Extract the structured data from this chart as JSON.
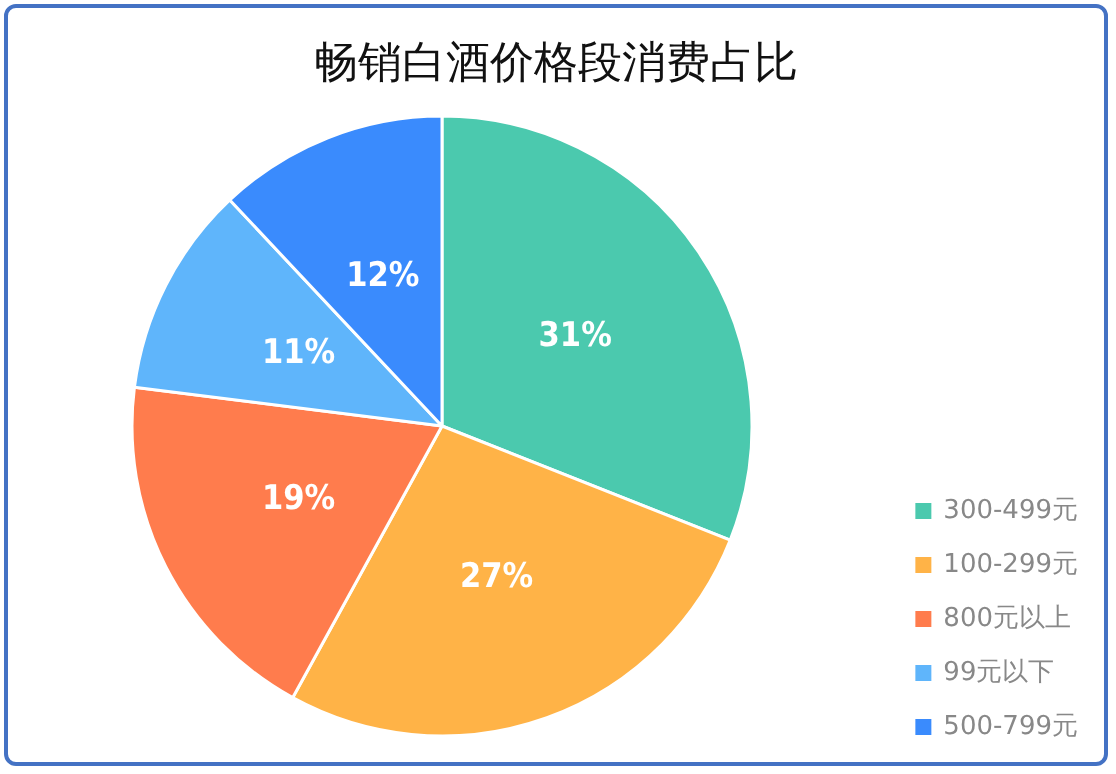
{
  "chart_data": {
    "type": "pie",
    "title": "畅销白酒价格段消费占比",
    "categories": [
      "300-499元",
      "100-299元",
      "800元以上",
      "99元以下",
      "500-799元"
    ],
    "values": [
      31,
      27,
      19,
      11,
      12
    ],
    "colors": [
      "#4bc9ae",
      "#ffb347",
      "#ff7c4d",
      "#5fb5fb",
      "#3a8bfd"
    ],
    "value_labels": [
      "31%",
      "27%",
      "19%",
      "11%",
      "12%"
    ],
    "legend": "bottom right"
  }
}
